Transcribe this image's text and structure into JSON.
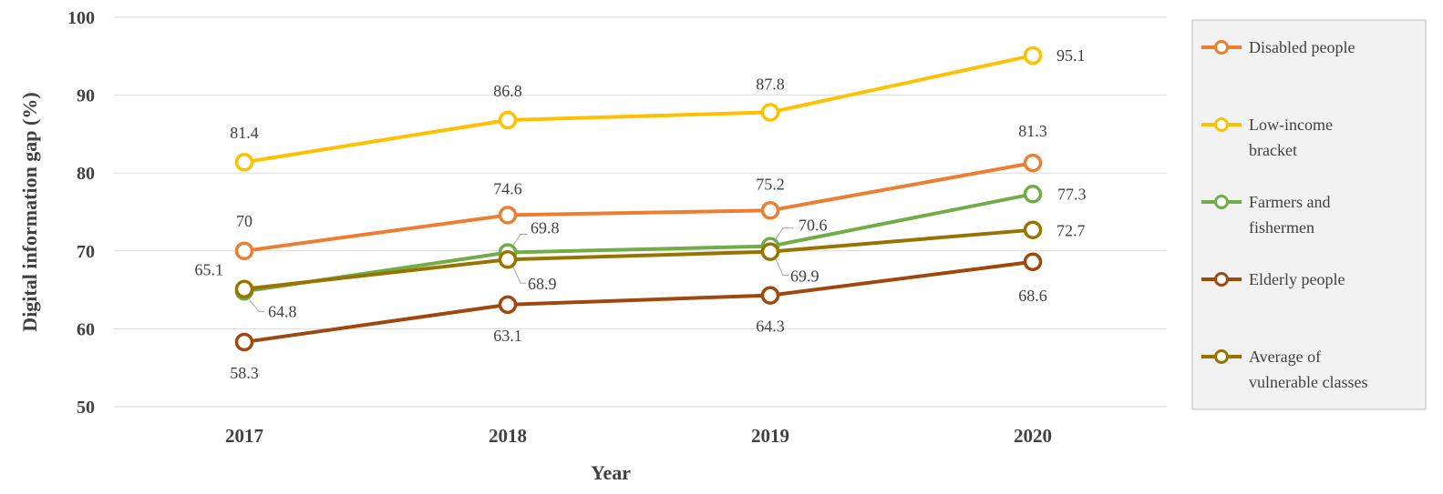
{
  "chart_data": {
    "type": "line",
    "title": "",
    "xlabel": "Year",
    "ylabel": "Digital information  gap (%)",
    "categories": [
      "2017",
      "2018",
      "2019",
      "2020"
    ],
    "ylim": [
      50,
      100
    ],
    "yticks": [
      "50",
      "60",
      "70",
      "80",
      "90",
      "100"
    ],
    "grid": "horizontal",
    "legend_position": "right",
    "series": [
      {
        "name": "Disabled people",
        "color": "#ed7d31",
        "values": [
          70,
          74.6,
          75.2,
          81.3
        ],
        "labels": [
          "70",
          "74.6",
          "75.2",
          "81.3"
        ]
      },
      {
        "name": "Low-income bracket",
        "color": "#ffc000",
        "values": [
          81.4,
          86.8,
          87.8,
          95.1
        ],
        "labels": [
          "81.4",
          "86.8",
          "87.8",
          "95.1"
        ]
      },
      {
        "name": "Farmers and fishermen",
        "color": "#70ad47",
        "values": [
          64.8,
          69.8,
          70.6,
          77.3
        ],
        "labels": [
          "64.8",
          "69.8",
          "70.6",
          "77.3"
        ]
      },
      {
        "name": "Elderly people",
        "color": "#9e480e",
        "values": [
          58.3,
          63.1,
          64.3,
          68.6
        ],
        "labels": [
          "58.3",
          "63.1",
          "64.3",
          "68.6"
        ]
      },
      {
        "name": "Average of vulnerable classes",
        "color": "#997300",
        "values": [
          65.1,
          68.9,
          69.9,
          72.7
        ],
        "labels": [
          "65.1",
          "68.9",
          "69.9",
          "72.7"
        ]
      }
    ],
    "legend": [
      {
        "lines": [
          "Disabled people"
        ]
      },
      {
        "lines": [
          "Low-income",
          "bracket"
        ]
      },
      {
        "lines": [
          "Farmers and",
          "fishermen"
        ]
      },
      {
        "lines": [
          "Elderly people"
        ]
      },
      {
        "lines": [
          "Average of",
          "vulnerable classes"
        ]
      }
    ]
  }
}
